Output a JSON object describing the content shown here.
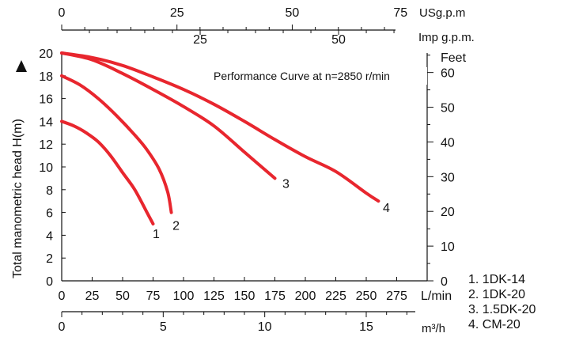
{
  "chart_data": {
    "type": "line",
    "title": "Performance Curve at n=2850 r/min",
    "ylabel": "Total manometric head H(m)",
    "ylim": [
      0,
      20
    ],
    "yticks": [
      0,
      2,
      4,
      6,
      8,
      10,
      12,
      14,
      16,
      18,
      20
    ],
    "y_right_unit": "Feet",
    "y_right_ticks": [
      "0",
      "10",
      "20",
      "30",
      "40",
      "50",
      "60"
    ],
    "xlabel": "L/min",
    "xlim": [
      0,
      300
    ],
    "xticks": [
      0,
      25,
      50,
      75,
      100,
      125,
      150,
      175,
      200,
      225,
      250,
      275
    ],
    "x_m3h_unit": "m³/h",
    "x_m3h_ticks": [
      "0",
      "5",
      "10",
      "15"
    ],
    "x_usgpm_unit": "USg.p.m",
    "x_usgpm_ticks": [
      "0",
      "25",
      "50",
      "75"
    ],
    "x_impgpm_unit": "Imp g.p.m.",
    "x_impgpm_ticks": [
      "25",
      "50"
    ],
    "grid": false,
    "series": [
      {
        "name": "1DK-14",
        "label": "1",
        "color": "#e8262e",
        "x": [
          0,
          10,
          20,
          30,
          40,
          50,
          60,
          70,
          75
        ],
        "y": [
          14,
          13.6,
          13.0,
          12.2,
          11.0,
          9.5,
          8.0,
          6.0,
          5.0
        ]
      },
      {
        "name": "1DK-20",
        "label": "2",
        "color": "#e8262e",
        "x": [
          0,
          15,
          30,
          45,
          60,
          70,
          80,
          87,
          90
        ],
        "y": [
          18,
          17.2,
          16.0,
          14.5,
          12.8,
          11.5,
          9.8,
          7.8,
          6.0
        ]
      },
      {
        "name": "1.5DK-20",
        "label": "3",
        "color": "#e8262e",
        "x": [
          0,
          25,
          50,
          75,
          100,
          125,
          150,
          175
        ],
        "y": [
          20,
          19.4,
          18.2,
          16.8,
          15.3,
          13.6,
          11.3,
          9.0
        ]
      },
      {
        "name": "CM-20",
        "label": "4",
        "color": "#e8262e",
        "x": [
          0,
          25,
          50,
          75,
          100,
          125,
          150,
          175,
          200,
          225,
          250,
          260
        ],
        "y": [
          20,
          19.6,
          18.9,
          17.9,
          16.8,
          15.5,
          14.0,
          12.4,
          10.9,
          9.6,
          7.7,
          7.0
        ]
      }
    ],
    "legend": [
      "1. 1DK-14",
      "2. 1DK-20",
      "3. 1.5DK-20",
      "4. CM-20"
    ],
    "legend_position": "bottom-right outside"
  }
}
